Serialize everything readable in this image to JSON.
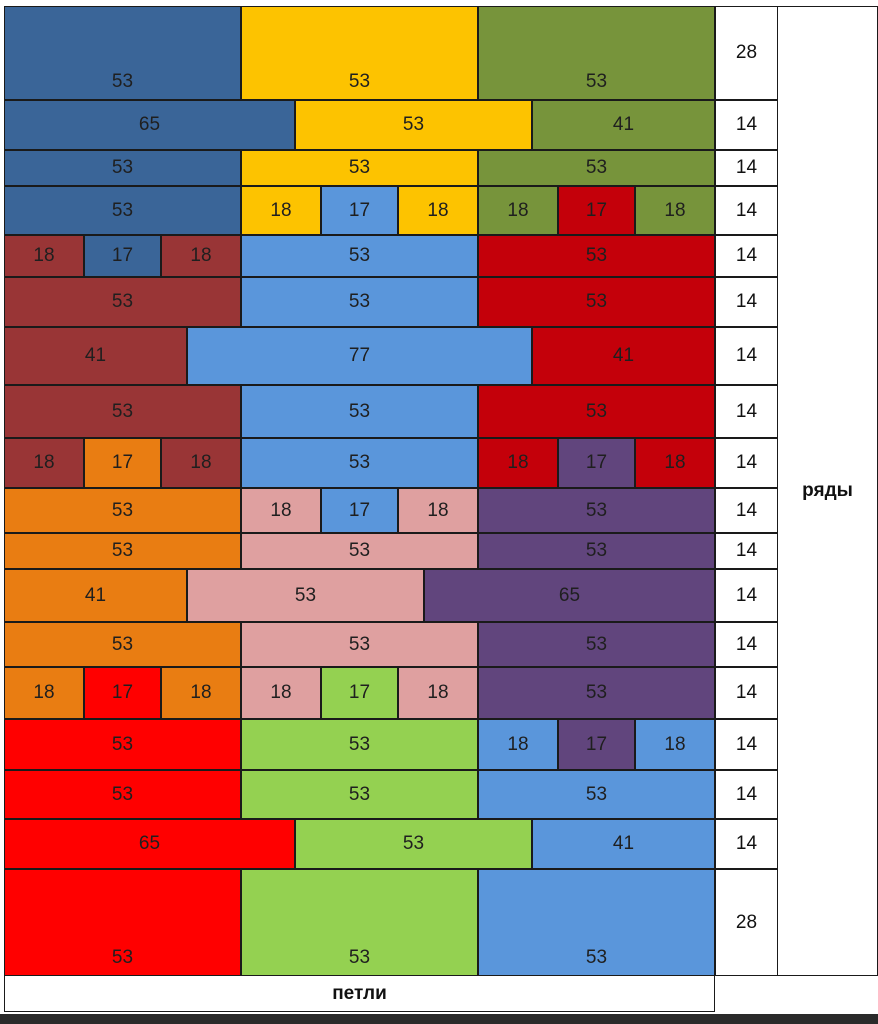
{
  "labels": {
    "rows": "ряды",
    "stitches": "петли"
  },
  "colors": {
    "navy": "#3A6598",
    "yellow": "#FDC300",
    "olive": "#77943B",
    "red": "#C4000A",
    "sky": "#5A96DB",
    "maroon": "#993536",
    "orange": "#E97D12",
    "pink": "#DFA0A0",
    "purple": "#61457D",
    "brightred": "#FF0000",
    "green": "#94D151"
  },
  "rows": [
    {
      "count": "28",
      "cells": [
        {
          "v": "53",
          "c": "navy"
        },
        {
          "v": "53",
          "c": "yellow"
        },
        {
          "v": "53",
          "c": "olive"
        }
      ]
    },
    {
      "count": "14",
      "cells": [
        {
          "v": "65",
          "c": "navy"
        },
        {
          "v": "53",
          "c": "yellow"
        },
        {
          "v": "41",
          "c": "olive"
        }
      ]
    },
    {
      "count": "14",
      "cells": [
        {
          "v": "53",
          "c": "navy"
        },
        {
          "v": "53",
          "c": "yellow"
        },
        {
          "v": "53",
          "c": "olive"
        }
      ]
    },
    {
      "count": "14",
      "cells": [
        {
          "v": "53",
          "c": "navy"
        },
        {
          "v": "18",
          "c": "yellow"
        },
        {
          "v": "17",
          "c": "sky"
        },
        {
          "v": "18",
          "c": "yellow"
        },
        {
          "v": "18",
          "c": "olive"
        },
        {
          "v": "17",
          "c": "red"
        },
        {
          "v": "18",
          "c": "olive"
        }
      ]
    },
    {
      "count": "14",
      "cells": [
        {
          "v": "18",
          "c": "maroon"
        },
        {
          "v": "17",
          "c": "navy"
        },
        {
          "v": "18",
          "c": "maroon"
        },
        {
          "v": "53",
          "c": "sky"
        },
        {
          "v": "53",
          "c": "red"
        }
      ]
    },
    {
      "count": "14",
      "cells": [
        {
          "v": "53",
          "c": "maroon"
        },
        {
          "v": "53",
          "c": "sky"
        },
        {
          "v": "53",
          "c": "red"
        }
      ]
    },
    {
      "count": "14",
      "cells": [
        {
          "v": "41",
          "c": "maroon"
        },
        {
          "v": "77",
          "c": "sky"
        },
        {
          "v": "41",
          "c": "red"
        }
      ]
    },
    {
      "count": "14",
      "cells": [
        {
          "v": "53",
          "c": "maroon"
        },
        {
          "v": "53",
          "c": "sky"
        },
        {
          "v": "53",
          "c": "red"
        }
      ]
    },
    {
      "count": "14",
      "cells": [
        {
          "v": "18",
          "c": "maroon"
        },
        {
          "v": "17",
          "c": "orange"
        },
        {
          "v": "18",
          "c": "maroon"
        },
        {
          "v": "53",
          "c": "sky"
        },
        {
          "v": "18",
          "c": "red"
        },
        {
          "v": "17",
          "c": "purple"
        },
        {
          "v": "18",
          "c": "red"
        }
      ]
    },
    {
      "count": "14",
      "cells": [
        {
          "v": "53",
          "c": "orange"
        },
        {
          "v": "18",
          "c": "pink"
        },
        {
          "v": "17",
          "c": "sky"
        },
        {
          "v": "18",
          "c": "pink"
        },
        {
          "v": "53",
          "c": "purple"
        }
      ]
    },
    {
      "count": "14",
      "cells": [
        {
          "v": "53",
          "c": "orange"
        },
        {
          "v": "53",
          "c": "pink"
        },
        {
          "v": "53",
          "c": "purple"
        }
      ]
    },
    {
      "count": "14",
      "cells": [
        {
          "v": "41",
          "c": "orange"
        },
        {
          "v": "53",
          "c": "pink"
        },
        {
          "v": "65",
          "c": "purple"
        }
      ]
    },
    {
      "count": "14",
      "cells": [
        {
          "v": "53",
          "c": "orange"
        },
        {
          "v": "53",
          "c": "pink"
        },
        {
          "v": "53",
          "c": "purple"
        }
      ]
    },
    {
      "count": "14",
      "cells": [
        {
          "v": "18",
          "c": "orange"
        },
        {
          "v": "17",
          "c": "brightred"
        },
        {
          "v": "18",
          "c": "orange"
        },
        {
          "v": "18",
          "c": "pink"
        },
        {
          "v": "17",
          "c": "green"
        },
        {
          "v": "18",
          "c": "pink"
        },
        {
          "v": "53",
          "c": "purple"
        }
      ]
    },
    {
      "count": "14",
      "cells": [
        {
          "v": "53",
          "c": "brightred"
        },
        {
          "v": "53",
          "c": "green"
        },
        {
          "v": "18",
          "c": "sky"
        },
        {
          "v": "17",
          "c": "purple"
        },
        {
          "v": "18",
          "c": "sky"
        }
      ]
    },
    {
      "count": "14",
      "cells": [
        {
          "v": "53",
          "c": "brightred"
        },
        {
          "v": "53",
          "c": "green"
        },
        {
          "v": "53",
          "c": "sky"
        }
      ]
    },
    {
      "count": "14",
      "cells": [
        {
          "v": "65",
          "c": "brightred"
        },
        {
          "v": "53",
          "c": "green"
        },
        {
          "v": "41",
          "c": "sky"
        }
      ]
    },
    {
      "count": "28",
      "cells": [
        {
          "v": "53",
          "c": "brightred"
        },
        {
          "v": "53",
          "c": "green"
        },
        {
          "v": "53",
          "c": "sky"
        }
      ]
    }
  ]
}
